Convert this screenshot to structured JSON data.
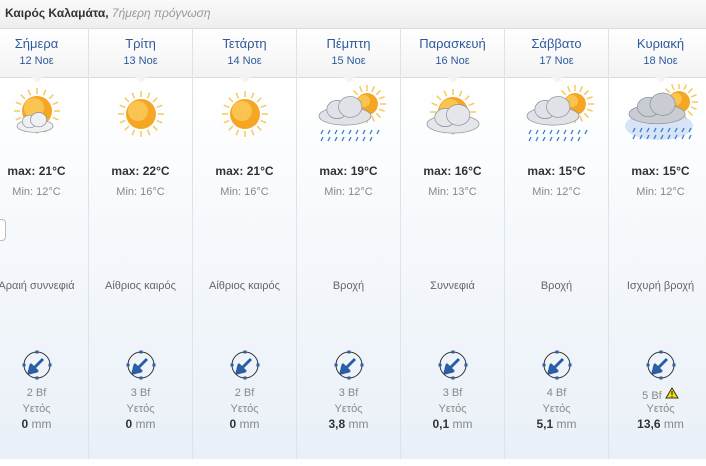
{
  "header": {
    "city": "Καιρός Καλαμάτα,",
    "subtitle": "7ήμερη πρόγνωση"
  },
  "days": [
    {
      "name": "Σήμερα",
      "date": "12 Νοε",
      "icon": "sun-cloud-icon",
      "max": "max: 21°C",
      "min": "Min: 12°C",
      "desc": "Αραιή συννεφιά",
      "wind": "2 Bf",
      "rain_label": "Υετός",
      "rain": "0",
      "unit": "mm"
    },
    {
      "name": "Τρίτη",
      "date": "13 Νοε",
      "icon": "sun-icon",
      "max": "max: 22°C",
      "min": "Min: 16°C",
      "desc": "Αίθριος καιρός",
      "wind": "3 Bf",
      "rain_label": "Υετός",
      "rain": "0",
      "unit": "mm"
    },
    {
      "name": "Τετάρτη",
      "date": "14 Νοε",
      "icon": "sun-icon",
      "max": "max: 21°C",
      "min": "Min: 16°C",
      "desc": "Αίθριος καιρός",
      "wind": "2 Bf",
      "rain_label": "Υετός",
      "rain": "0",
      "unit": "mm"
    },
    {
      "name": "Πέμπτη",
      "date": "15 Νοε",
      "icon": "rain-icon",
      "max": "max: 19°C",
      "min": "Min: 12°C",
      "desc": "Βροχή",
      "wind": "3 Bf",
      "rain_label": "Υετός",
      "rain": "3,8",
      "unit": "mm"
    },
    {
      "name": "Παρασκευή",
      "date": "16 Νοε",
      "icon": "cloudy-icon",
      "max": "max: 16°C",
      "min": "Min: 13°C",
      "desc": "Συννεφιά",
      "wind": "3 Bf",
      "rain_label": "Υετός",
      "rain": "0,1",
      "unit": "mm"
    },
    {
      "name": "Σάββατο",
      "date": "17 Νοε",
      "icon": "rain-icon",
      "max": "max: 15°C",
      "min": "Min: 12°C",
      "desc": "Βροχή",
      "wind": "4 Bf",
      "rain_label": "Υετός",
      "rain": "5,1",
      "unit": "mm"
    },
    {
      "name": "Κυριακή",
      "date": "18 Νοε",
      "icon": "heavy-rain-icon",
      "max": "max: 15°C",
      "min": "Min: 12°C",
      "desc": "Ισχυρή βροχή",
      "wind": "5 Bf",
      "warning": true,
      "rain_label": "Υετός",
      "rain": "13,6",
      "unit": "mm"
    }
  ],
  "colors": {
    "accent": "#2f5a9e",
    "sun": "#f5a623",
    "warning": "#f2e100"
  }
}
